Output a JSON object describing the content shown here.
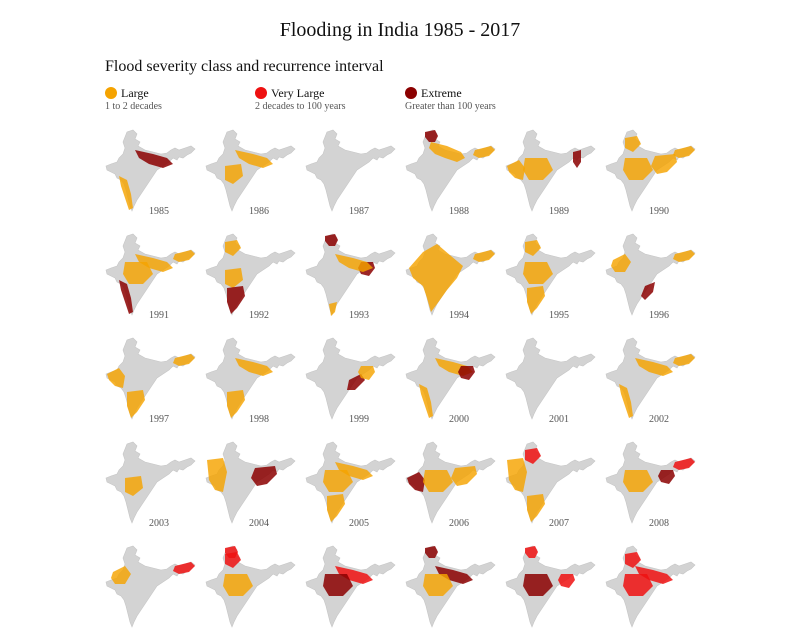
{
  "title": "Flooding in India 1985 - 2017",
  "subtitle": "Flood severity class and recurrence interval",
  "colors": {
    "background": "#ffffff",
    "land": "#d3d3d3",
    "large": "#f5a300",
    "very_large": "#ee1111",
    "extreme": "#8b0000"
  },
  "legend": [
    {
      "key": "large",
      "label": "Large",
      "note": "1 to 2 decades",
      "color": "#f5a300"
    },
    {
      "key": "very_large",
      "label": "Very Large",
      "note": "2 decades to 100 years",
      "color": "#ee1111"
    },
    {
      "key": "extreme",
      "label": "Extreme",
      "note": "Greater than 100 years",
      "color": "#8b0000"
    }
  ],
  "chart_data": {
    "type": "small-multiple choropleth maps",
    "title": "Flooding in India 1985 - 2017",
    "subtitle": "Flood severity class and recurrence interval",
    "categories": [
      "Large",
      "Very Large",
      "Extreme"
    ],
    "panels": [
      {
        "year": "1985",
        "floods": [
          {
            "class": "large",
            "region": "west-coast"
          },
          {
            "class": "extreme",
            "region": "north-plain"
          }
        ]
      },
      {
        "year": "1986",
        "floods": [
          {
            "class": "large",
            "region": "north-plain"
          },
          {
            "class": "large",
            "region": "west-central"
          }
        ]
      },
      {
        "year": "1987",
        "floods": []
      },
      {
        "year": "1988",
        "floods": [
          {
            "class": "extreme",
            "region": "kashmir"
          },
          {
            "class": "large",
            "region": "punjab-up"
          },
          {
            "class": "large",
            "region": "assam"
          }
        ]
      },
      {
        "year": "1989",
        "floods": [
          {
            "class": "large",
            "region": "central"
          },
          {
            "class": "large",
            "region": "gujarat"
          },
          {
            "class": "extreme",
            "region": "east-north"
          }
        ]
      },
      {
        "year": "1990",
        "floods": [
          {
            "class": "large",
            "region": "north"
          },
          {
            "class": "large",
            "region": "central"
          },
          {
            "class": "large",
            "region": "east"
          },
          {
            "class": "large",
            "region": "assam"
          }
        ]
      },
      {
        "year": "1991",
        "floods": [
          {
            "class": "large",
            "region": "central"
          },
          {
            "class": "large",
            "region": "north-plain"
          },
          {
            "class": "extreme",
            "region": "west-coast"
          },
          {
            "class": "large",
            "region": "assam"
          }
        ]
      },
      {
        "year": "1992",
        "floods": [
          {
            "class": "large",
            "region": "north"
          },
          {
            "class": "large",
            "region": "west-central"
          },
          {
            "class": "extreme",
            "region": "south"
          }
        ]
      },
      {
        "year": "1993",
        "floods": [
          {
            "class": "extreme",
            "region": "kashmir"
          },
          {
            "class": "extreme",
            "region": "bengal"
          },
          {
            "class": "large",
            "region": "north-plain"
          },
          {
            "class": "large",
            "region": "south-tip"
          }
        ]
      },
      {
        "year": "1994",
        "floods": [
          {
            "class": "large",
            "region": "most"
          },
          {
            "class": "large",
            "region": "assam"
          }
        ]
      },
      {
        "year": "1995",
        "floods": [
          {
            "class": "large",
            "region": "north"
          },
          {
            "class": "large",
            "region": "central"
          },
          {
            "class": "large",
            "region": "south"
          }
        ]
      },
      {
        "year": "1996",
        "floods": [
          {
            "class": "large",
            "region": "north-west"
          },
          {
            "class": "large",
            "region": "assam"
          },
          {
            "class": "extreme",
            "region": "east-coast"
          }
        ]
      },
      {
        "year": "1997",
        "floods": [
          {
            "class": "large",
            "region": "gujarat"
          },
          {
            "class": "large",
            "region": "south"
          },
          {
            "class": "large",
            "region": "assam"
          }
        ]
      },
      {
        "year": "1998",
        "floods": [
          {
            "class": "large",
            "region": "north-plain"
          },
          {
            "class": "large",
            "region": "south"
          }
        ]
      },
      {
        "year": "1999",
        "floods": [
          {
            "class": "extreme",
            "region": "orissa"
          },
          {
            "class": "large",
            "region": "bengal"
          }
        ]
      },
      {
        "year": "2000",
        "floods": [
          {
            "class": "large",
            "region": "north-plain"
          },
          {
            "class": "extreme",
            "region": "bengal"
          },
          {
            "class": "large",
            "region": "west-coast"
          }
        ]
      },
      {
        "year": "2001",
        "floods": []
      },
      {
        "year": "2002",
        "floods": [
          {
            "class": "large",
            "region": "north-plain"
          },
          {
            "class": "large",
            "region": "assam"
          },
          {
            "class": "large",
            "region": "west-coast"
          }
        ]
      },
      {
        "year": "2003",
        "floods": [
          {
            "class": "large",
            "region": "west-central"
          }
        ]
      },
      {
        "year": "2004",
        "floods": [
          {
            "class": "large",
            "region": "west"
          },
          {
            "class": "extreme",
            "region": "east"
          }
        ]
      },
      {
        "year": "2005",
        "floods": [
          {
            "class": "large",
            "region": "north-plain"
          },
          {
            "class": "large",
            "region": "central"
          },
          {
            "class": "large",
            "region": "south"
          }
        ]
      },
      {
        "year": "2006",
        "floods": [
          {
            "class": "extreme",
            "region": "gujarat"
          },
          {
            "class": "large",
            "region": "central"
          },
          {
            "class": "large",
            "region": "east"
          }
        ]
      },
      {
        "year": "2007",
        "floods": [
          {
            "class": "very_large",
            "region": "north"
          },
          {
            "class": "large",
            "region": "west"
          },
          {
            "class": "large",
            "region": "south"
          }
        ]
      },
      {
        "year": "2008",
        "floods": [
          {
            "class": "extreme",
            "region": "bengal"
          },
          {
            "class": "very_large",
            "region": "assam"
          },
          {
            "class": "large",
            "region": "central"
          }
        ]
      },
      {
        "year": "",
        "floods": [
          {
            "class": "large",
            "region": "north-west"
          },
          {
            "class": "very_large",
            "region": "assam"
          }
        ]
      },
      {
        "year": "",
        "floods": [
          {
            "class": "very_large",
            "region": "kashmir"
          },
          {
            "class": "very_large",
            "region": "north"
          },
          {
            "class": "large",
            "region": "central"
          }
        ]
      },
      {
        "year": "",
        "floods": [
          {
            "class": "very_large",
            "region": "north-plain"
          },
          {
            "class": "extreme",
            "region": "central"
          }
        ]
      },
      {
        "year": "",
        "floods": [
          {
            "class": "extreme",
            "region": "kashmir"
          },
          {
            "class": "extreme",
            "region": "north-plain"
          },
          {
            "class": "large",
            "region": "central"
          }
        ]
      },
      {
        "year": "",
        "floods": [
          {
            "class": "very_large",
            "region": "kashmir"
          },
          {
            "class": "extreme",
            "region": "central"
          },
          {
            "class": "very_large",
            "region": "bengal"
          }
        ]
      },
      {
        "year": "",
        "floods": [
          {
            "class": "very_large",
            "region": "north"
          },
          {
            "class": "very_large",
            "region": "north-plain"
          },
          {
            "class": "very_large",
            "region": "central"
          }
        ]
      }
    ]
  }
}
